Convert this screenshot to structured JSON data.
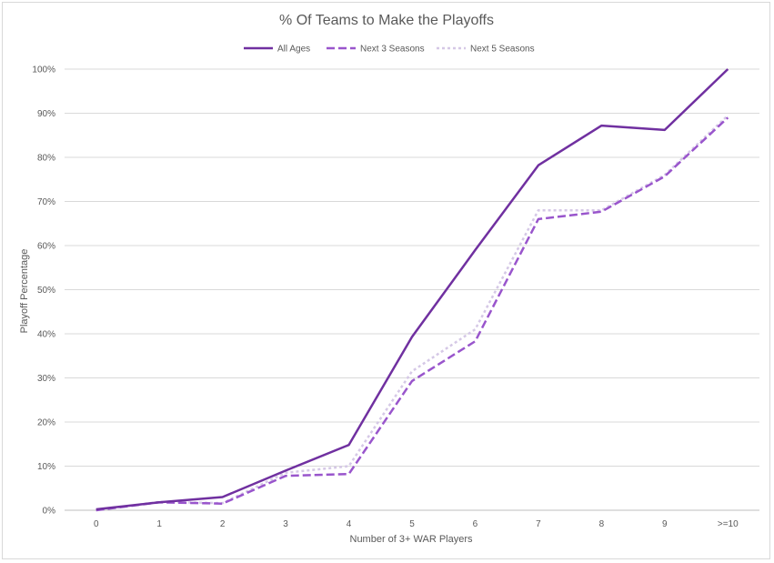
{
  "chart_data": {
    "type": "line",
    "title": "% Of Teams to Make the Playoffs",
    "xlabel": "Number of 3+ WAR Players",
    "ylabel": "Playoff Percentage",
    "categories": [
      "0",
      "1",
      "2",
      "3",
      "4",
      "5",
      "6",
      "7",
      "8",
      "9",
      ">=10"
    ],
    "ylim": [
      0,
      1
    ],
    "yticks": [
      "0%",
      "10%",
      "20%",
      "30%",
      "40%",
      "50%",
      "60%",
      "70%",
      "80%",
      "90%",
      "100%"
    ],
    "grid": true,
    "legend_position": "top",
    "series": [
      {
        "name": "All Ages",
        "color": "#7030a0",
        "style": "solid",
        "values": [
          0.002,
          0.018,
          0.03,
          0.09,
          0.148,
          0.393,
          0.59,
          0.782,
          0.872,
          0.862,
          1.0
        ]
      },
      {
        "name": "Next 3 Seasons",
        "color": "#9955cc",
        "style": "dashed",
        "values": [
          0.0,
          0.018,
          0.015,
          0.078,
          0.082,
          0.293,
          0.383,
          0.66,
          0.677,
          0.757,
          0.89
        ]
      },
      {
        "name": "Next 5 Seasons",
        "color": "#d5c8e6",
        "style": "dotted",
        "values": [
          0.0,
          0.019,
          0.016,
          0.085,
          0.1,
          0.315,
          0.41,
          0.68,
          0.68,
          0.76,
          0.895
        ]
      }
    ]
  }
}
